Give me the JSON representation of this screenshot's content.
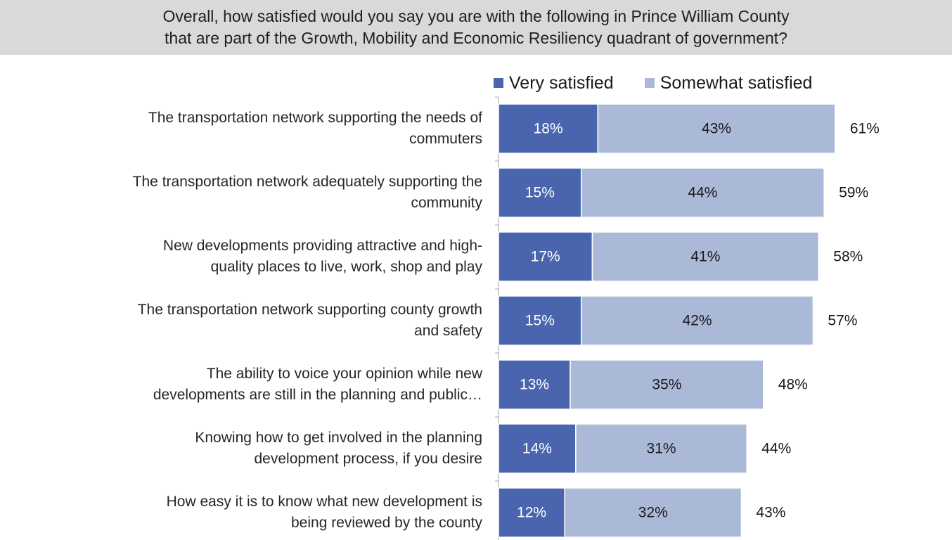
{
  "title_lines": [
    "Overall, how satisfied would you say you are with the following in Prince William County",
    "that are part of the Growth, Mobility and Economic Resiliency quadrant of government?"
  ],
  "chart_data": {
    "type": "bar",
    "orientation": "horizontal",
    "stacked": true,
    "title": "Overall, how satisfied would you say you are with the following in Prince William County that are part of the Growth, Mobility and Economic Resiliency quadrant of government?",
    "legend_placement": "top",
    "categories": [
      [
        "The transportation network supporting the needs of",
        "commuters"
      ],
      [
        "The transportation network adequately supporting the",
        "community"
      ],
      [
        "New developments providing attractive and high-",
        "quality places to live, work, shop and play"
      ],
      [
        "The transportation network supporting county growth",
        "and safety"
      ],
      [
        "The ability to voice your opinion while new",
        "developments are still in the planning and public…"
      ],
      [
        "Knowing how to get involved in the planning",
        "development process, if you desire"
      ],
      [
        "How easy it is to know what new development is",
        "being reviewed by the county"
      ]
    ],
    "series": [
      {
        "name": "Very satisfied",
        "color": "#4a65ad",
        "values": [
          18,
          15,
          17,
          15,
          13,
          14,
          12
        ],
        "labels": [
          "18%",
          "15%",
          "17%",
          "15%",
          "13%",
          "14%",
          "12%"
        ]
      },
      {
        "name": "Somewhat satisfied",
        "color": "#abb9d8",
        "values": [
          43,
          44,
          41,
          42,
          35,
          31,
          32
        ],
        "labels": [
          "43%",
          "44%",
          "41%",
          "42%",
          "35%",
          "31%",
          "32%"
        ]
      }
    ],
    "totals": [
      61,
      59,
      58,
      57,
      48,
      44,
      43
    ],
    "total_labels": [
      "61%",
      "59%",
      "58%",
      "57%",
      "48%",
      "44%",
      "43%"
    ],
    "xlim": [
      0,
      62
    ],
    "grid": false
  }
}
